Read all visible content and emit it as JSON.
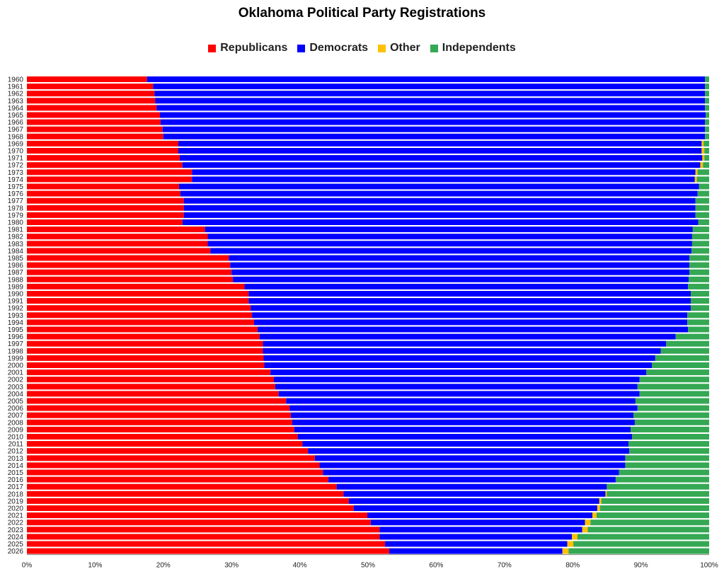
{
  "chart_data": {
    "type": "bar",
    "orientation": "horizontal",
    "stacked": "percent",
    "title": "Oklahoma Political Party Registrations",
    "legend_position": "top",
    "xlim": [
      0,
      100
    ],
    "x_ticks": [
      "0%",
      "10%",
      "20%",
      "30%",
      "40%",
      "50%",
      "60%",
      "70%",
      "80%",
      "90%",
      "100%"
    ],
    "grid": false,
    "categories": [
      "1960",
      "1961",
      "1962",
      "1963",
      "1964",
      "1965",
      "1966",
      "1967",
      "1968",
      "1969",
      "1970",
      "1971",
      "1972",
      "1973",
      "1974",
      "1975",
      "1976",
      "1977",
      "1978",
      "1979",
      "1980",
      "1981",
      "1982",
      "1983",
      "1984",
      "1985",
      "1986",
      "1987",
      "1988",
      "1989",
      "1990",
      "1991",
      "1992",
      "1993",
      "1994",
      "1995",
      "1996",
      "1997",
      "1998",
      "1999",
      "2000",
      "2001",
      "2002",
      "2003",
      "2004",
      "2005",
      "2006",
      "2007",
      "2008",
      "2009",
      "2010",
      "2011",
      "2012",
      "2013",
      "2014",
      "2015",
      "2016",
      "2017",
      "2018",
      "2019",
      "2020",
      "2021",
      "2022",
      "2023",
      "2024",
      "2025",
      "2026"
    ],
    "series": [
      {
        "name": "Republicans",
        "color": "#ff0000",
        "values": [
          17.6,
          18.5,
          18.7,
          18.8,
          19.0,
          19.5,
          19.6,
          19.9,
          20.0,
          22.2,
          22.2,
          22.4,
          22.8,
          24.2,
          24.2,
          22.3,
          22.5,
          23.0,
          23.0,
          23.0,
          22.8,
          26.1,
          26.5,
          26.5,
          26.9,
          29.6,
          29.8,
          30.0,
          30.2,
          31.9,
          32.5,
          32.5,
          32.8,
          33.0,
          33.3,
          33.8,
          34.1,
          34.6,
          34.6,
          34.7,
          34.8,
          35.7,
          36.2,
          36.4,
          36.9,
          38.0,
          38.5,
          38.7,
          38.9,
          39.2,
          39.7,
          40.4,
          41.2,
          42.2,
          42.9,
          43.4,
          44.2,
          45.4,
          46.4,
          47.2,
          47.9,
          49.9,
          50.4,
          51.7,
          51.7,
          52.5,
          53.1
        ]
      },
      {
        "name": "Democrats",
        "color": "#0000ff",
        "values": [
          81.8,
          80.9,
          80.7,
          80.6,
          80.4,
          80.0,
          79.8,
          79.5,
          79.4,
          76.7,
          76.7,
          76.6,
          75.9,
          73.8,
          73.7,
          76.2,
          75.8,
          75.0,
          75.0,
          75.0,
          75.6,
          71.5,
          71.0,
          71.0,
          70.5,
          67.5,
          67.3,
          67.1,
          66.8,
          65.0,
          64.8,
          64.8,
          64.5,
          63.8,
          63.5,
          63.1,
          61.0,
          59.1,
          58.3,
          57.4,
          56.8,
          55.1,
          53.6,
          53.1,
          52.9,
          51.2,
          51.0,
          50.2,
          50.2,
          49.3,
          49.0,
          47.8,
          47.1,
          45.5,
          44.8,
          43.4,
          42.1,
          39.6,
          38.4,
          36.7,
          35.7,
          33.0,
          31.4,
          29.7,
          28.2,
          26.7,
          25.4
        ]
      },
      {
        "name": "Other",
        "color": "#ffc000",
        "values": [
          0,
          0,
          0,
          0,
          0,
          0,
          0,
          0,
          0,
          0.3,
          0.4,
          0.3,
          0.4,
          0.3,
          0.3,
          0,
          0,
          0,
          0,
          0,
          0,
          0,
          0,
          0,
          0,
          0,
          0,
          0,
          0,
          0,
          0,
          0,
          0,
          0,
          0,
          0,
          0,
          0,
          0,
          0,
          0,
          0,
          0,
          0,
          0,
          0,
          0,
          0,
          0,
          0,
          0,
          0,
          0,
          0,
          0,
          0,
          0,
          0,
          0.2,
          0.3,
          0.4,
          0.6,
          0.8,
          0.8,
          0.8,
          0.9,
          0.9
        ]
      },
      {
        "name": "Independents",
        "color": "#34a853",
        "values": [
          0.6,
          0.6,
          0.6,
          0.6,
          0.6,
          0.5,
          0.6,
          0.6,
          0.6,
          0.8,
          0.7,
          0.7,
          0.9,
          1.7,
          1.8,
          1.5,
          1.7,
          2.0,
          2.0,
          2.0,
          1.6,
          2.4,
          2.5,
          2.5,
          2.6,
          2.9,
          2.9,
          2.9,
          3.0,
          3.1,
          2.7,
          2.7,
          2.7,
          3.2,
          3.2,
          3.1,
          4.9,
          6.3,
          7.1,
          7.9,
          8.4,
          9.2,
          10.2,
          10.5,
          10.2,
          10.8,
          10.5,
          11.1,
          10.9,
          11.5,
          11.3,
          11.8,
          11.7,
          12.3,
          12.3,
          13.2,
          13.7,
          15.0,
          15.0,
          15.8,
          16.0,
          16.5,
          17.4,
          17.8,
          19.3,
          19.9,
          20.6
        ]
      }
    ]
  }
}
